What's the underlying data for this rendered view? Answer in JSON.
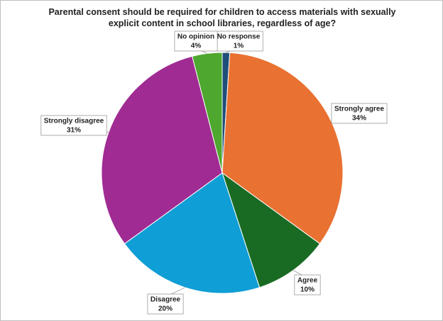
{
  "chart_data": {
    "type": "pie",
    "title": "Parental consent should be required for children to access materials with sexually explicit content in school libraries, regardless of age?",
    "categories": [
      "No response",
      "Strongly agree",
      "Agree",
      "Disagree",
      "Strongly disagree",
      "No opinion"
    ],
    "values": [
      1,
      34,
      10,
      20,
      31,
      4
    ],
    "value_labels": [
      "1%",
      "34%",
      "10%",
      "20%",
      "31%",
      "4%"
    ],
    "colors": [
      "#1f4e79",
      "#e97132",
      "#196b24",
      "#0f9ed5",
      "#a02b93",
      "#4ea72e"
    ]
  }
}
